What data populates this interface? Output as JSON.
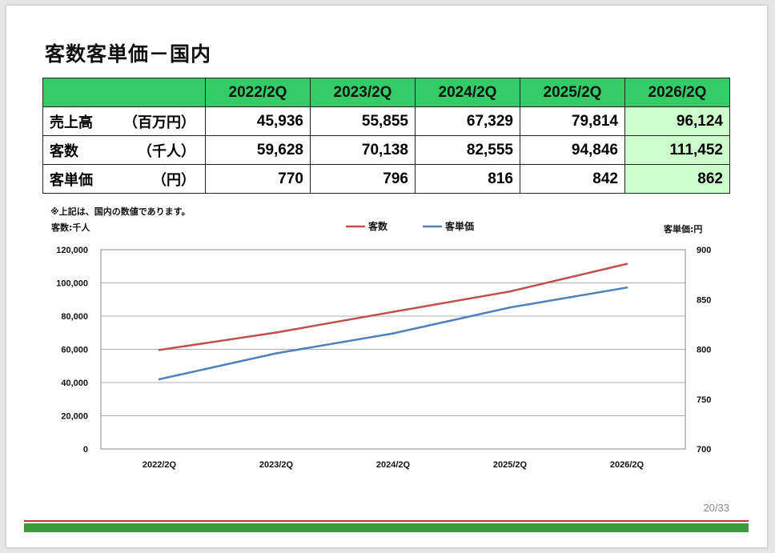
{
  "page": {
    "title": "客数客単価－国内",
    "note": "※上記は、国内の数値であります。",
    "page_number": "20/33"
  },
  "table": {
    "headers": [
      "2022/2Q",
      "2023/2Q",
      "2024/2Q",
      "2025/2Q",
      "2026/2Q"
    ],
    "rows": [
      {
        "label": "売上高",
        "unit": "（百万円）",
        "values": [
          "45,936",
          "55,855",
          "67,329",
          "79,814",
          "96,124"
        ]
      },
      {
        "label": "客数",
        "unit": "（千人）",
        "values": [
          "59,628",
          "70,138",
          "82,555",
          "94,846",
          "111,452"
        ]
      },
      {
        "label": "客単価",
        "unit": "（円）",
        "values": [
          "770",
          "796",
          "816",
          "842",
          "862"
        ]
      }
    ],
    "highlight_last_column": true
  },
  "chart_data": {
    "type": "line",
    "categories": [
      "2022/2Q",
      "2023/2Q",
      "2024/2Q",
      "2025/2Q",
      "2026/2Q"
    ],
    "series": [
      {
        "name": "客数",
        "axis": "left",
        "color": "#c0504d",
        "values": [
          59628,
          70138,
          82555,
          94846,
          111452
        ]
      },
      {
        "name": "客単価",
        "axis": "right",
        "color": "#4f81bd",
        "values": [
          770,
          796,
          816,
          842,
          862
        ]
      }
    ],
    "ylabel": "客数:千人",
    "y2label": "客単価:円",
    "ylim": [
      0,
      120000
    ],
    "y2lim": [
      700,
      900
    ],
    "yticks": [
      "0",
      "20,000",
      "40,000",
      "60,000",
      "80,000",
      "100,000",
      "120,000"
    ],
    "y2ticks": [
      "700",
      "750",
      "800",
      "850",
      "900"
    ],
    "grid": true,
    "legend_position": "top-center"
  },
  "colors": {
    "header_green": "#33cc66",
    "highlight_green": "#ccffcc",
    "footer_red": "#cc3333",
    "footer_green": "#3a9a3a"
  }
}
